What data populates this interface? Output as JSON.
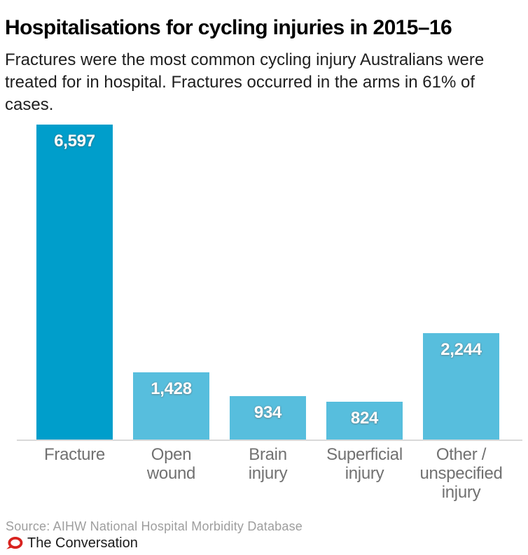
{
  "header": {
    "title": "Hospitalisations for cycling injuries in 2015–16",
    "subtitle": "Fractures were the most common cycling injury Australians were treated for in hospital. Fractures occurred in the arms in 61% of cases."
  },
  "chart_data": {
    "type": "bar",
    "title": "Hospitalisations for cycling injuries in 2015–16",
    "categories": [
      "Fracture",
      "Open wound",
      "Brain injury",
      "Superficial injury",
      "Other / unspecified injury"
    ],
    "category_label_lines": [
      [
        "Fracture"
      ],
      [
        "Open",
        "wound"
      ],
      [
        "Brain",
        "injury"
      ],
      [
        "Superficial",
        "injury"
      ],
      [
        "Other /",
        "unspecified",
        "injury"
      ]
    ],
    "values": [
      6597,
      1428,
      934,
      824,
      2244
    ],
    "value_labels": [
      "6,597",
      "1,428",
      "934",
      "824",
      "2,244"
    ],
    "highlight_index": 0,
    "highlight_color": "#009ecb",
    "bar_color": "#57bedd",
    "value_label_color": "#ffffff",
    "axis_label_color": "#717171",
    "axis_line_color": "#d9d9d9",
    "xlabel": "",
    "ylabel": "",
    "ylim": [
      0,
      6597
    ],
    "grid": false,
    "legend": false,
    "orientation": "vertical"
  },
  "footer": {
    "source": "Source: AIHW National Hospital Morbidity Database",
    "brand": "The Conversation",
    "logo": {
      "name": "the-conversation-speech-bubble",
      "color": "#d8231f"
    }
  }
}
